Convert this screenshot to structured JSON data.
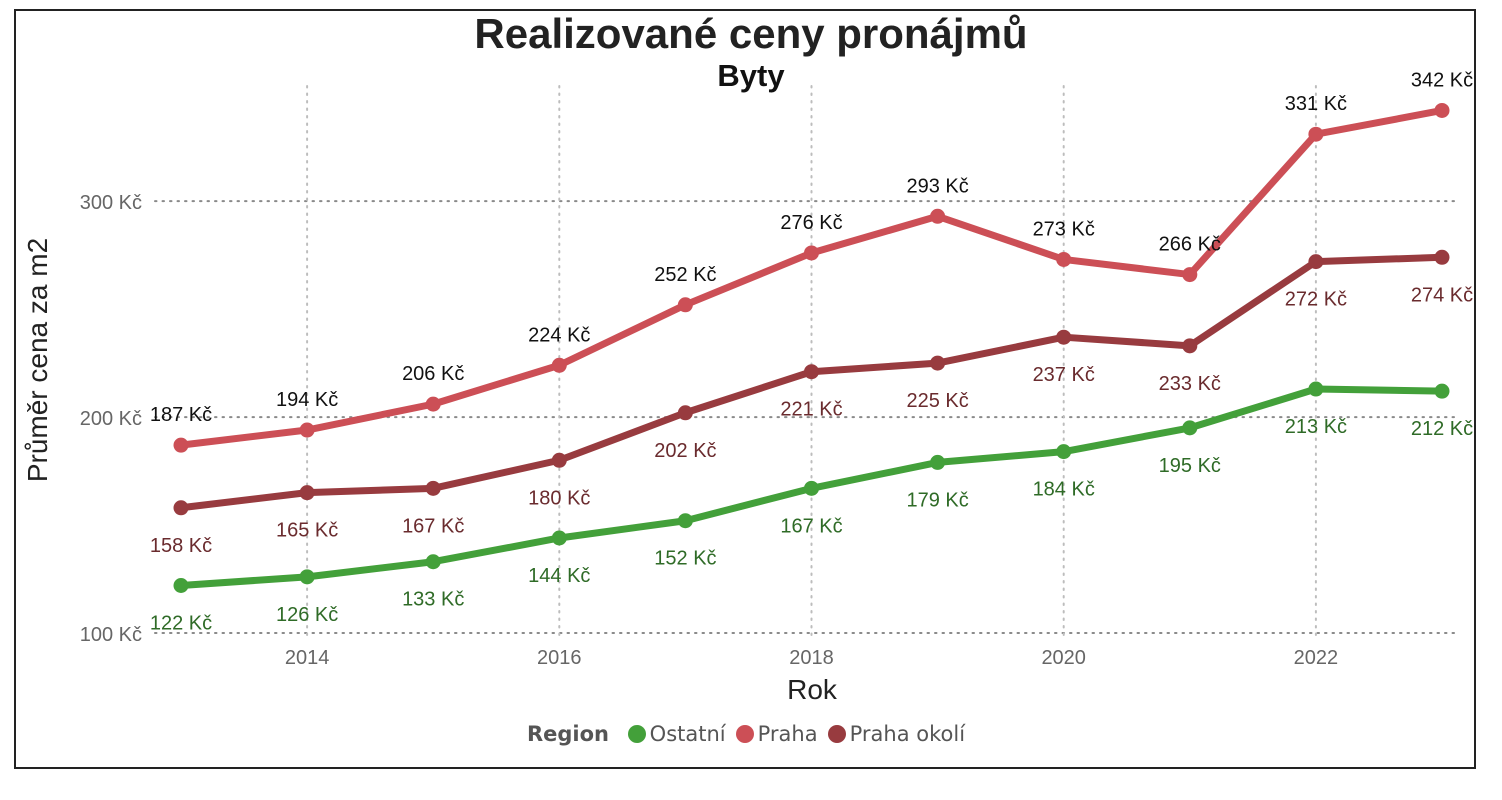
{
  "chart_data": {
    "type": "line",
    "title": "Realizované ceny pronájmů",
    "subtitle": "Byty",
    "xlabel": "Rok",
    "ylabel": "Průměr cena za m2",
    "x": [
      2013,
      2014,
      2015,
      2016,
      2017,
      2018,
      2019,
      2020,
      2021,
      2022,
      2023
    ],
    "xlim": [
      2013,
      2023
    ],
    "ylim": [
      100,
      345
    ],
    "x_ticks": [
      2014,
      2016,
      2018,
      2020,
      2022
    ],
    "x_tick_labels": [
      "2014",
      "2016",
      "2018",
      "2020",
      "2022"
    ],
    "y_ticks": [
      100,
      200,
      300
    ],
    "y_tick_labels": [
      "100 Kč",
      "200 Kč",
      "300 Kč"
    ],
    "grid": true,
    "legend_title": "Region",
    "legend_position": "bottom",
    "series": [
      {
        "name": "Ostatní",
        "color": "#43a03a",
        "label_color": "#2f6b27",
        "label_position": "below",
        "values": [
          122,
          126,
          133,
          144,
          152,
          167,
          179,
          184,
          195,
          213,
          212
        ],
        "labels": [
          "122 Kč",
          "126 Kč",
          "133 Kč",
          "144 Kč",
          "152 Kč",
          "167 Kč",
          "179 Kč",
          "184 Kč",
          "195 Kč",
          "213 Kč",
          "212 Kč"
        ]
      },
      {
        "name": "Praha",
        "color": "#cc4f56",
        "label_color": "#111111",
        "label_position": "above",
        "values": [
          187,
          194,
          206,
          224,
          252,
          276,
          293,
          273,
          266,
          331,
          342
        ],
        "labels": [
          "187 Kč",
          "194 Kč",
          "206 Kč",
          "224 Kč",
          "252 Kč",
          "276 Kč",
          "293 Kč",
          "273 Kč",
          "266 Kč",
          "331 Kč",
          "342 Kč"
        ]
      },
      {
        "name": "Praha okolí",
        "color": "#983b3f",
        "label_color": "#6a2b2e",
        "label_position": "below",
        "values": [
          158,
          165,
          167,
          180,
          202,
          221,
          225,
          237,
          233,
          272,
          274
        ],
        "labels": [
          "158 Kč",
          "165 Kč",
          "167 Kč",
          "180 Kč",
          "202 Kč",
          "221 Kč",
          "225 Kč",
          "237 Kč",
          "233 Kč",
          "272 Kč",
          "274 Kč"
        ]
      }
    ]
  }
}
